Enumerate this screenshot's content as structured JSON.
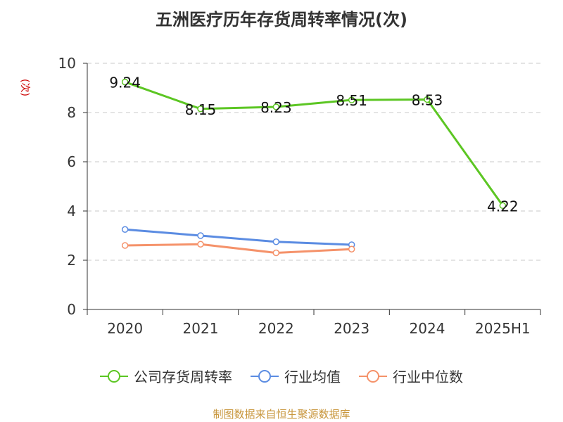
{
  "chart_data": {
    "type": "line",
    "title": "五洲医疗历年存货周转率情况(次)",
    "ylabel": "(次)",
    "categories": [
      "2020",
      "2021",
      "2022",
      "2023",
      "2024",
      "2025H1"
    ],
    "y_ticks": [
      "0",
      "2",
      "4",
      "6",
      "8",
      "10"
    ],
    "ylim": [
      0,
      10
    ],
    "grid": true,
    "legend_position": "bottom",
    "series": [
      {
        "name": "公司存货周转率",
        "color": "#5cc623",
        "values": [
          9.24,
          8.15,
          8.23,
          8.51,
          8.53,
          4.22
        ],
        "labels": [
          "9.24",
          "8.15",
          "8.23",
          "8.51",
          "8.53",
          "4.22"
        ]
      },
      {
        "name": "行业均值",
        "color": "#5b8ce2",
        "values": [
          3.25,
          3.0,
          2.75,
          2.63,
          null,
          null
        ]
      },
      {
        "name": "行业中位数",
        "color": "#f5926a",
        "values": [
          2.6,
          2.65,
          2.3,
          2.45,
          null,
          null
        ]
      }
    ],
    "source": "制图数据来自恒生聚源数据库"
  }
}
